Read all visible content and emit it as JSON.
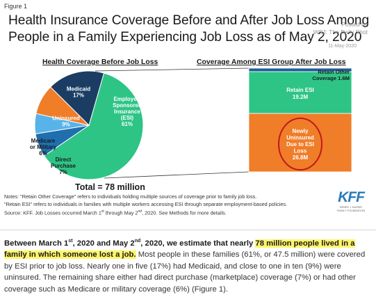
{
  "figure_label": "Figure 1",
  "title": "Health Insurance Coverage Before and After Job Loss Among People in a Family Experiencing Job Loss as of May 2, 2020",
  "watermark": {
    "line1": "Posted by",
    "line2": "WSJ: The Daily Shot",
    "line3": "11-May-2020"
  },
  "colors": {
    "esi": "#2ec486",
    "medicaid": "#1b3d63",
    "uninsured": "#f07d28",
    "medicare": "#58b3e8",
    "direct": "#1f6fae",
    "retain_other": "#1f5e97",
    "retain_esi": "#2ec486",
    "newly_uninsured": "#f07d28",
    "highlight": "#fff56a",
    "kff_blue": "#2a7bb9"
  },
  "chart_data": [
    {
      "type": "pie",
      "title": "Health Coverage Before Job Loss",
      "total_label": "Total = 78 million",
      "slices": [
        {
          "key": "esi",
          "label": "Employer-Sponsored Insurance (ESI)",
          "lines": [
            "Employer-",
            "Sponsored",
            "Insurance",
            "(ESI)"
          ],
          "value": 61,
          "value_label": "61%",
          "color": "#2ec486"
        },
        {
          "key": "direct",
          "label": "Direct Purchase",
          "lines": [
            "Direct",
            "Purchase"
          ],
          "value": 7,
          "value_label": "7%",
          "color": "#1f6fae"
        },
        {
          "key": "medicare",
          "label": "Medicare or Military",
          "lines": [
            "Medicare",
            "or Military"
          ],
          "value": 6,
          "value_label": "6%",
          "color": "#58b3e8"
        },
        {
          "key": "uninsured",
          "label": "Uninsured",
          "lines": [
            "Uninsured"
          ],
          "value": 9,
          "value_label": "9%",
          "color": "#f07d28"
        },
        {
          "key": "medicaid",
          "label": "Medicaid",
          "lines": [
            "Medicaid"
          ],
          "value": 17,
          "value_label": "17%",
          "color": "#1b3d63"
        }
      ]
    },
    {
      "type": "bar",
      "title": "Coverage Among ESI Group After Job Loss",
      "stacked": true,
      "segments": [
        {
          "label": "Retain Other Coverage",
          "value": 1.6,
          "value_label": "1.6M",
          "color": "#1f5e97"
        },
        {
          "label": "Retain ESI",
          "value": 19.2,
          "value_label": "19.2M",
          "color": "#2ec486"
        },
        {
          "label": "Newly Uninsured Due to ESI Loss",
          "lines": [
            "Newly",
            "Uninsured",
            "Due to ESI",
            "Loss"
          ],
          "value": 26.8,
          "value_label": "26.8M",
          "color": "#f07d28"
        }
      ]
    }
  ],
  "notes": {
    "line1": "Notes: \"Retain Other Coverage\" refers to individuals holding multiple sources of coverage prior to family job loss.",
    "line2": "\"Retain ESI\" refers to individuals in families with multiple workers accessing ESI through separate employment-based policies.",
    "line3a": "Source: KFF. Job Losses occurred March 1",
    "line3_sup1": "st",
    "line3b": " through May 2",
    "line3_sup2": "nd",
    "line3c": ", 2020.  See Methods for more details."
  },
  "logo": {
    "main": "KFF",
    "sub1": "HENRY J KAISER",
    "sub2": "FAMILY FOUNDATION"
  },
  "paragraph": {
    "p1": "Between March 1",
    "p1_sup": "st",
    "p2": ", 2020 and May 2",
    "p2_sup": "nd",
    "p3": ", 2020, we estimate that nearly ",
    "highlight": "78 million people lived in a family in which someone lost a job.",
    "rest": " Most people in these families (61%, or 47.5 million) were covered by ESI prior to job loss. Nearly one in five (17%) had Medicaid, and close to one in ten (9%) were uninsured. The remaining share either had direct purchase (marketplace) coverage (7%) or had other coverage such as Medicare or military coverage (6%) (Figure 1)."
  }
}
